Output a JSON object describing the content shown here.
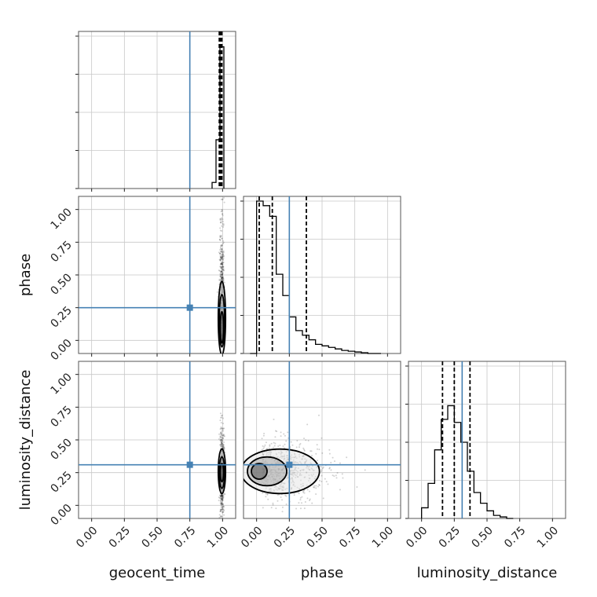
{
  "chart_data": {
    "type": "corner",
    "parameters": [
      "geocent_time",
      "phase",
      "luminosity_distance"
    ],
    "axis_range": [
      -0.1,
      1.1
    ],
    "ticks": [
      0.0,
      0.25,
      0.5,
      0.75,
      1.0
    ],
    "tick_labels": [
      "0.00",
      "0.25",
      "0.50",
      "0.75",
      "1.00"
    ],
    "grid": true,
    "truths": {
      "geocent_time": 0.75,
      "phase": 0.25,
      "luminosity_distance": 0.31
    },
    "truth_color": "#4682b4",
    "marginals": {
      "geocent_time": {
        "bin_edges": [
          0.92,
          0.95,
          0.98,
          1.01
        ],
        "counts": [
          0.04,
          0.32,
          0.93
        ],
        "quantiles": [
          0.975,
          0.985,
          0.995
        ]
      },
      "phase": {
        "bin_edges": [
          -0.05,
          0.0,
          0.05,
          0.1,
          0.15,
          0.2,
          0.25,
          0.3,
          0.35,
          0.4,
          0.45,
          0.5,
          0.55,
          0.6,
          0.65,
          0.7,
          0.75,
          0.8,
          0.85,
          0.9,
          0.95
        ],
        "counts": [
          0.0,
          1.0,
          0.97,
          0.9,
          0.52,
          0.38,
          0.24,
          0.15,
          0.12,
          0.09,
          0.06,
          0.05,
          0.04,
          0.03,
          0.02,
          0.015,
          0.01,
          0.005,
          0.0,
          0.0
        ],
        "quantiles": [
          0.02,
          0.12,
          0.38
        ]
      },
      "luminosity_distance": {
        "bin_edges": [
          0.0,
          0.05,
          0.1,
          0.15,
          0.2,
          0.25,
          0.3,
          0.35,
          0.4,
          0.45,
          0.5,
          0.55,
          0.6,
          0.65,
          0.7
        ],
        "counts": [
          0.07,
          0.23,
          0.45,
          0.65,
          0.74,
          0.63,
          0.5,
          0.31,
          0.17,
          0.1,
          0.05,
          0.02,
          0.01,
          0.0
        ],
        "quantiles": [
          0.16,
          0.25,
          0.37
        ]
      }
    },
    "joint": [
      {
        "x": "geocent_time",
        "y": "phase",
        "center": [
          0.995,
          0.15
        ],
        "contours": [
          {
            "rx": 0.012,
            "ry": 0.12,
            "cy": 0.1
          },
          {
            "rx": 0.02,
            "ry": 0.2,
            "cy": 0.15
          },
          {
            "rx": 0.028,
            "ry": 0.28,
            "cy": 0.17
          }
        ],
        "scatter_spread": [
          0.014,
          0.4
        ]
      },
      {
        "x": "geocent_time",
        "y": "luminosity_distance",
        "center": [
          0.995,
          0.25
        ],
        "contours": [
          {
            "rx": 0.012,
            "ry": 0.07,
            "cy": 0.25
          },
          {
            "rx": 0.02,
            "ry": 0.12,
            "cy": 0.25
          },
          {
            "rx": 0.028,
            "ry": 0.17,
            "cy": 0.26
          }
        ],
        "scatter_spread": [
          0.014,
          0.16
        ]
      },
      {
        "x": "phase",
        "y": "luminosity_distance",
        "center": [
          0.1,
          0.26
        ],
        "contours": [
          {
            "rx": 0.06,
            "ry": 0.06,
            "cx": 0.02,
            "cy": 0.26
          },
          {
            "rx": 0.15,
            "ry": 0.11,
            "cx": 0.08,
            "cy": 0.26
          },
          {
            "rx": 0.3,
            "ry": 0.17,
            "cx": 0.18,
            "cy": 0.26
          }
        ],
        "scatter_spread": [
          0.22,
          0.12
        ]
      }
    ]
  }
}
